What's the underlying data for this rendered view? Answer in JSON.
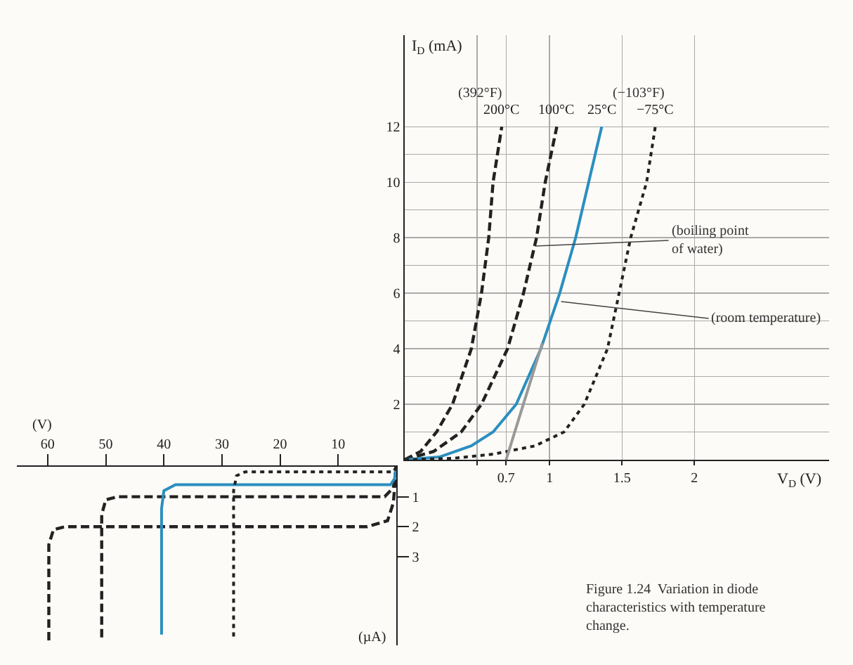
{
  "chart_data": [
    {
      "type": "line",
      "xlabel": "V$_{D}$ (V)",
      "ylabel": "I$_{D}$ (mA)",
      "xlim": [
        0,
        2.93
      ],
      "ylim": [
        0,
        15.3
      ],
      "xticks": [
        {
          "value": 0.5,
          "label": null
        },
        0.7,
        1,
        1.5,
        2
      ],
      "yticks": [
        {
          "value": 1,
          "label": null
        },
        2,
        {
          "value": 3,
          "label": null
        },
        4,
        {
          "value": 5,
          "label": null
        },
        6,
        {
          "value": 7,
          "label": null
        },
        8,
        {
          "value": 9,
          "label": null
        },
        10,
        {
          "value": 11,
          "label": null
        },
        12
      ],
      "grid": true,
      "legend": false,
      "series": [
        {
          "name": "200°C",
          "color": "#222222",
          "line_style": "dashed",
          "x": [
            0,
            0.11,
            0.22,
            0.33,
            0.46,
            0.53,
            0.58,
            0.61,
            0.67
          ],
          "values": [
            0,
            0.3,
            1,
            2,
            4,
            6,
            8,
            10,
            12
          ]
        },
        {
          "name": "100°C",
          "color": "#222222",
          "line_style": "dashed",
          "x": [
            0,
            0.2,
            0.39,
            0.53,
            0.71,
            0.82,
            0.91,
            0.97,
            1.05
          ],
          "values": [
            0,
            0.3,
            1,
            2,
            4,
            6,
            8,
            10,
            12
          ]
        },
        {
          "name": "25°C",
          "color": "#2a8fc0",
          "line_style": "solid",
          "x": [
            0,
            0.24,
            0.46,
            0.61,
            0.77,
            0.94,
            1.07,
            1.18,
            1.27,
            1.36
          ],
          "values": [
            0,
            0.1,
            0.5,
            1,
            2,
            4,
            6,
            8,
            10,
            12
          ]
        },
        {
          "name": "−75°C",
          "color": "#222222",
          "line_style": "dotted",
          "x": [
            0,
            0.33,
            0.61,
            0.9,
            1.1,
            1.24,
            1.4,
            1.48,
            1.56,
            1.67,
            1.73
          ],
          "values": [
            0,
            0.05,
            0.2,
            0.5,
            1,
            2,
            4,
            6,
            8,
            10,
            12
          ]
        },
        {
          "color": "#999999",
          "line_style": "solid",
          "x": [
            0.7,
            0.95
          ],
          "values": [
            0,
            4.2
          ]
        }
      ],
      "annotations": [
        "(392°F)",
        "(−103°F)",
        "Figure 1.24  Variation in diode\ncharacteristics with temperature\nchange.",
        {
          "text": "(boiling point\nof water)",
          "x": 0.9,
          "y": 7.7
        },
        {
          "text": "(room temperature)",
          "x": 1.08,
          "y": 5.7
        }
      ]
    },
    {
      "type": "line",
      "xlabel": "(V)",
      "ylabel": "(µA)",
      "xlim": [
        65.3,
        0
      ],
      "ylim": [
        5.96,
        0
      ],
      "xticks": [
        60,
        50,
        40,
        30,
        20,
        10
      ],
      "yticks": [
        1,
        2,
        3
      ],
      "grid": false,
      "legend": false,
      "series": [
        {
          "color": "#222222",
          "line_style": "dashed",
          "x": [
            0,
            0.5,
            1.5,
            5,
            57,
            59,
            59.8,
            59.8
          ],
          "values": [
            0,
            1.2,
            1.8,
            2,
            2,
            2.1,
            2.6,
            5.8
          ]
        },
        {
          "color": "#222222",
          "line_style": "dashed",
          "x": [
            0,
            0.5,
            2,
            48,
            50,
            50.7,
            50.7
          ],
          "values": [
            0,
            0.7,
            1,
            1,
            1.1,
            1.6,
            5.8
          ]
        },
        {
          "color": "#2a8fc0",
          "line_style": "solid",
          "x": [
            0,
            0.3,
            1,
            38,
            40,
            40.4,
            40.4
          ],
          "values": [
            0,
            0.4,
            0.6,
            0.6,
            0.8,
            1.4,
            5.6
          ]
        },
        {
          "color": "#222222",
          "line_style": "dotted",
          "x": [
            0,
            0.5,
            26,
            27.5,
            28,
            28
          ],
          "values": [
            0,
            0.17,
            0.17,
            0.3,
            0.8,
            5.8
          ]
        }
      ]
    }
  ]
}
